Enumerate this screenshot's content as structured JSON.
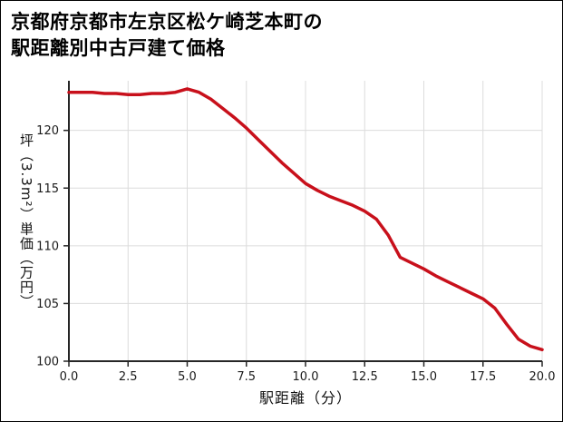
{
  "title": {
    "line1": "京都府京都市左京区松ケ崎芝本町の",
    "line2": "駅距離別中古戸建て価格"
  },
  "chart_data": {
    "type": "line",
    "title": "京都府京都市左京区松ケ崎芝本町の駅距離別中古戸建て価格",
    "xlabel": "駅距離（分）",
    "ylabel": "坪（3.3m²）単価（万円）",
    "xlim": [
      0,
      20
    ],
    "ylim": [
      100,
      124.3
    ],
    "xticks": [
      0,
      2.5,
      5,
      7.5,
      10,
      12.5,
      15,
      17.5,
      20
    ],
    "xtick_labels": [
      "0.0",
      "2.5",
      "5.0",
      "7.5",
      "10.0",
      "12.5",
      "15.0",
      "17.5",
      "20.0"
    ],
    "yticks": [
      100,
      105,
      110,
      115,
      120
    ],
    "ytick_labels": [
      "100",
      "105",
      "110",
      "115",
      "120"
    ],
    "grid": true,
    "legend": "none",
    "x": [
      0,
      0.5,
      1,
      1.5,
      2,
      2.5,
      3,
      3.5,
      4,
      4.5,
      5,
      5.5,
      6,
      6.5,
      7,
      7.5,
      8,
      8.5,
      9,
      9.5,
      10,
      10.5,
      11,
      11.5,
      12,
      12.5,
      13,
      13.5,
      14,
      14.5,
      15,
      15.5,
      16,
      16.5,
      17,
      17.5,
      18,
      18.5,
      19,
      19.5,
      20
    ],
    "values": [
      123.3,
      123.3,
      123.3,
      123.2,
      123.2,
      123.1,
      123.1,
      123.2,
      123.2,
      123.3,
      123.6,
      123.3,
      122.7,
      121.9,
      121.1,
      120.2,
      119.2,
      118.2,
      117.2,
      116.3,
      115.4,
      114.8,
      114.3,
      113.9,
      113.5,
      113.0,
      112.3,
      110.9,
      109.0,
      108.5,
      108.0,
      107.4,
      106.9,
      106.4,
      105.9,
      105.4,
      104.6,
      103.2,
      101.9,
      101.3,
      101.0
    ],
    "line_color": "#c8101b",
    "grid_color": "#dcdcdc",
    "axis_color": "#262626",
    "tick_label_color": "#1a1a1a",
    "background_color": "#ffffff"
  }
}
